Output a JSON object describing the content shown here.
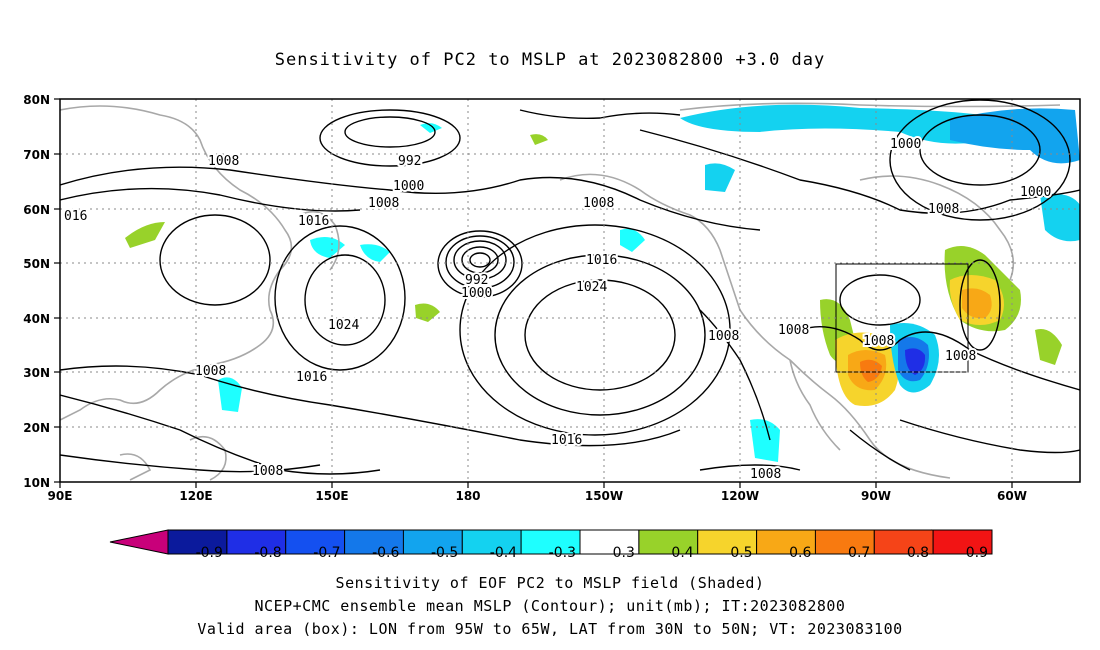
{
  "title": "Sensitivity of PC2 to MSLP at 2023082800 +3.0 day",
  "map": {
    "lat_labels": [
      "80N",
      "70N",
      "60N",
      "50N",
      "40N",
      "30N",
      "20N",
      "10N"
    ],
    "lon_labels": [
      "90E",
      "120E",
      "150E",
      "180",
      "150W",
      "120W",
      "90W",
      "60W"
    ],
    "valid_box": {
      "lon_min": -95,
      "lon_max": -65,
      "lat_min": 30,
      "lat_max": 50
    },
    "contour_labels": [
      "1008",
      "992",
      "1000",
      "1008",
      "016",
      "1016",
      "992",
      "1000",
      "1024",
      "1016",
      "1008",
      "1008",
      "1016",
      "1024",
      "1016",
      "1008",
      "1008",
      "1008",
      "1008",
      "1008",
      "1000",
      "1000",
      "1008",
      "1008",
      "1008"
    ]
  },
  "colorbar": {
    "labels": [
      "-0.9",
      "-0.8",
      "-0.7",
      "-0.6",
      "-0.5",
      "-0.4",
      "-0.3",
      "0.3",
      "0.4",
      "0.5",
      "0.6",
      "0.7",
      "0.8",
      "0.9"
    ],
    "colors": [
      "#0b1a9c",
      "#1f2ee6",
      "#1450f0",
      "#1478ea",
      "#12a4ee",
      "#14d2f0",
      "#1effff",
      "#ffffff",
      "#98d22a",
      "#f6d42c",
      "#f8a816",
      "#f87a10",
      "#f54418",
      "#f21414"
    ],
    "low_arrow_color": "#c8007a",
    "high_arrow_color": "#f7a0c8"
  },
  "captions": [
    "Sensitivity of EOF PC2 to MSLP field (Shaded)",
    "NCEP+CMC ensemble mean MSLP (Contour); unit(mb); IT:2023082800",
    "Valid area (box): LON from 95W to 65W, LAT from 30N to 50N; VT: 2023083100"
  ]
}
